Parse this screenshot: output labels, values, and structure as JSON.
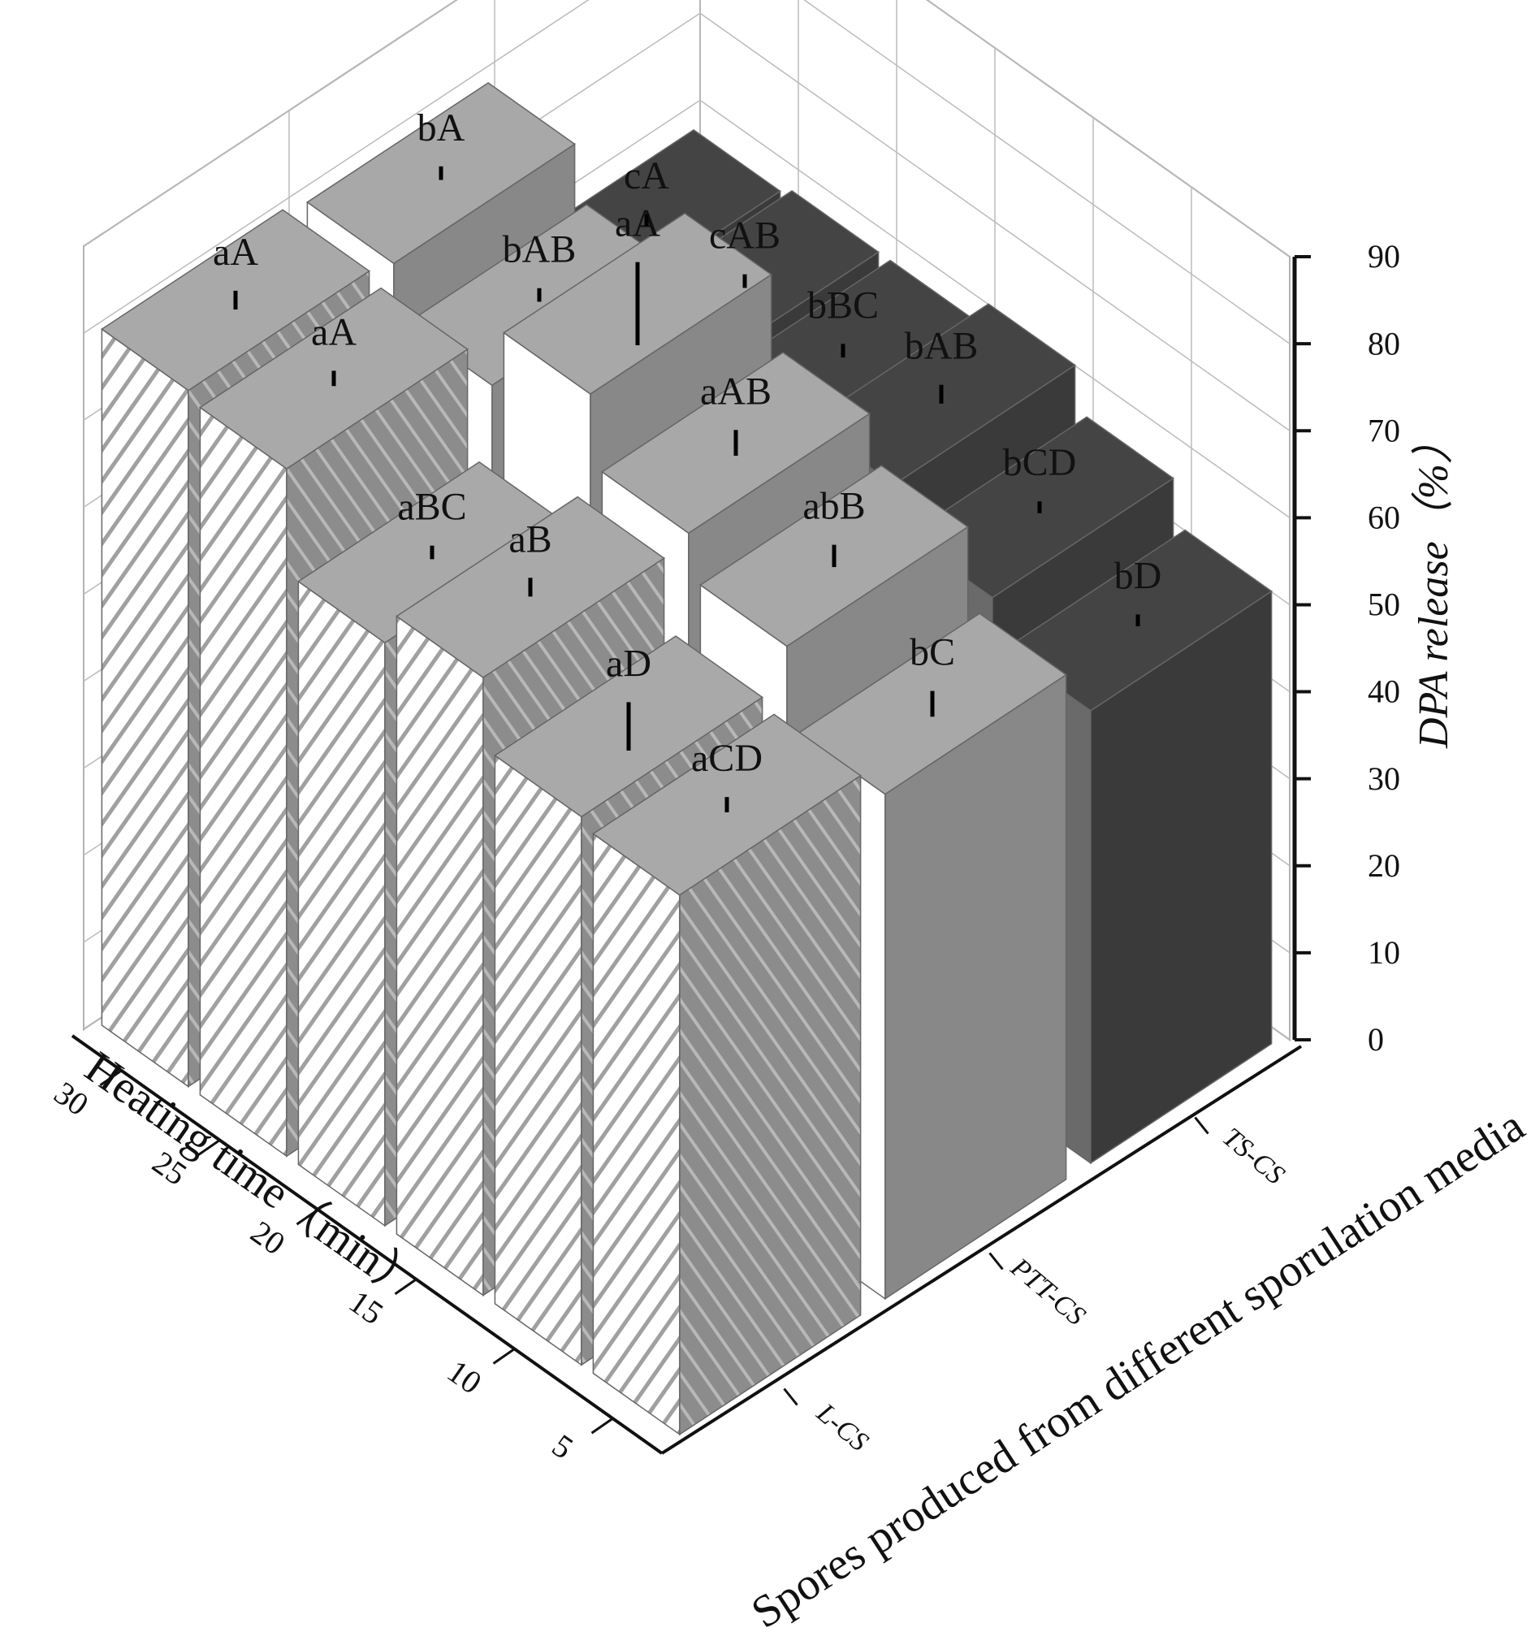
{
  "chart_data": {
    "type": "bar3d",
    "x": [
      5,
      10,
      15,
      20,
      25,
      30
    ],
    "xlabel": "Heating time（min）",
    "categories_label": "Spores produced from different sporulation media",
    "ylabel": "DPA release（%）",
    "ylim": [
      0,
      90
    ],
    "yticks": [
      0,
      10,
      20,
      30,
      40,
      50,
      60,
      70,
      80,
      90
    ],
    "grid": true,
    "series": [
      {
        "name": "L-CS",
        "hatch": true,
        "face_colors": [
          "#ffffff",
          "#8c8c8c",
          "#a9a9a9"
        ],
        "values": [
          62,
          63,
          71,
          67,
          79,
          80
        ],
        "errors": [
          0.6,
          2.5,
          0.8,
          0.5,
          0.6,
          0.8
        ],
        "annotations": [
          "aCD",
          "aD",
          "aB",
          "aBC",
          "aA",
          "aA"
        ]
      },
      {
        "name": "PTT-CS",
        "hatch": false,
        "face_colors": [
          "#ffffff",
          "#888888",
          "#a8a8a8"
        ],
        "values": [
          58,
          67,
          72,
          80,
          73,
          79
        ],
        "errors": [
          1.2,
          1,
          1.2,
          4.5,
          0.5,
          0.5
        ],
        "annotations": [
          "bC",
          "abB",
          "aAB",
          "aA",
          "bAB",
          "bA"
        ]
      },
      {
        "name": "TS-CS",
        "hatch": false,
        "face_colors": [
          "#6a6a6a",
          "#3a3a3a",
          "#444444"
        ],
        "values": [
          52,
          57,
          62,
          59,
          59,
          58
        ],
        "errors": [
          0.4,
          0.4,
          0.8,
          0.5,
          0.5,
          0.4
        ],
        "annotations": [
          "bD",
          "bCD",
          "bAB",
          "bBC",
          "cAB",
          "cA"
        ]
      }
    ]
  }
}
